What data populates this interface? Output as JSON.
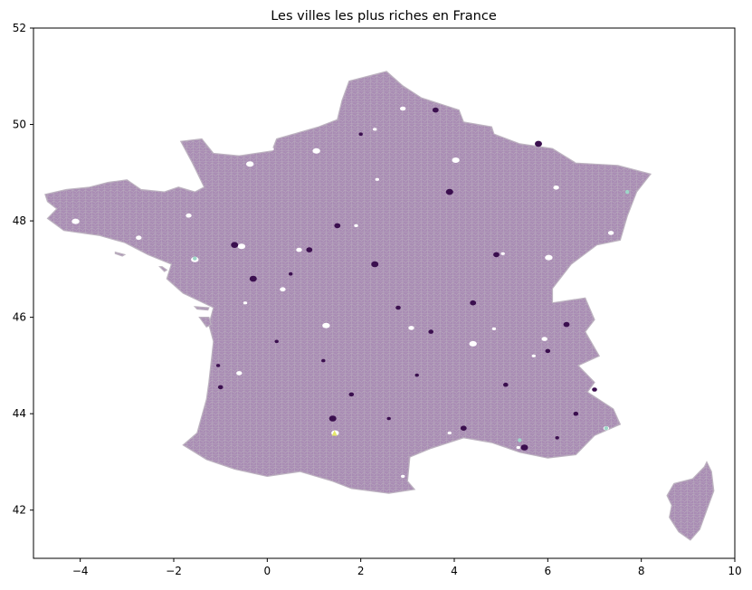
{
  "title": "Les villes les plus riches en France",
  "map": {
    "type": "choropleth",
    "x_range": [
      -5,
      10
    ],
    "y_range": [
      41,
      52
    ],
    "x_ticks": [
      {
        "value": -4,
        "label": "−4"
      },
      {
        "value": -2,
        "label": "−2"
      },
      {
        "value": 0,
        "label": "0"
      },
      {
        "value": 2,
        "label": "2"
      },
      {
        "value": 4,
        "label": "4"
      },
      {
        "value": 6,
        "label": "6"
      },
      {
        "value": 8,
        "label": "8"
      },
      {
        "value": 10,
        "label": "10"
      }
    ],
    "y_ticks": [
      {
        "value": 42,
        "label": "42"
      },
      {
        "value": 44,
        "label": "44"
      },
      {
        "value": 46,
        "label": "46"
      },
      {
        "value": 48,
        "label": "48"
      },
      {
        "value": 50,
        "label": "50"
      },
      {
        "value": 52,
        "label": "52"
      }
    ],
    "colors": {
      "base_fill": "#a98cb4",
      "region_border": "#bdb3c0",
      "dark_commune": "#3b0f4f",
      "highlight_yellow": "#e6e86a",
      "highlight_teal": "#9fd6c8",
      "axis": "#000000",
      "background": "#ffffff"
    },
    "dark_points": [
      [
        -1.05,
        45.0
      ],
      [
        -1.0,
        44.55
      ],
      [
        1.5,
        47.9
      ],
      [
        5.5,
        43.3
      ],
      [
        6.2,
        43.5
      ],
      [
        3.5,
        45.7
      ],
      [
        4.4,
        46.3
      ],
      [
        2.3,
        47.1
      ],
      [
        0.5,
        46.9
      ],
      [
        6.0,
        45.3
      ],
      [
        6.4,
        45.85
      ],
      [
        -0.3,
        46.8
      ],
      [
        1.2,
        45.1
      ],
      [
        2.8,
        46.2
      ],
      [
        4.9,
        47.3
      ],
      [
        5.8,
        49.6
      ],
      [
        3.2,
        44.8
      ],
      [
        1.8,
        44.4
      ],
      [
        0.9,
        47.4
      ],
      [
        3.9,
        48.6
      ],
      [
        2.0,
        49.8
      ],
      [
        6.6,
        44.0
      ],
      [
        4.2,
        43.7
      ],
      [
        -0.7,
        47.5
      ],
      [
        2.6,
        43.9
      ],
      [
        5.1,
        44.6
      ],
      [
        3.6,
        50.3
      ],
      [
        1.4,
        43.9
      ],
      [
        0.2,
        45.5
      ],
      [
        7.0,
        44.5
      ]
    ],
    "yellow_points": [
      [
        1.44,
        43.6
      ]
    ],
    "teal_points": [
      [
        -1.55,
        47.22
      ],
      [
        7.7,
        48.6
      ],
      [
        5.4,
        43.45
      ],
      [
        7.25,
        43.7
      ]
    ],
    "regions": {
      "mainland": [
        [
          -4.7,
          48.4
        ],
        [
          -4.75,
          48.55
        ],
        [
          -4.3,
          48.65
        ],
        [
          -3.8,
          48.7
        ],
        [
          -3.4,
          48.8
        ],
        [
          -3.0,
          48.85
        ],
        [
          -2.7,
          48.65
        ],
        [
          -2.2,
          48.6
        ],
        [
          -1.9,
          48.7
        ],
        [
          -1.55,
          48.6
        ],
        [
          -1.35,
          48.7
        ],
        [
          -1.6,
          49.2
        ],
        [
          -1.85,
          49.65
        ],
        [
          -1.4,
          49.7
        ],
        [
          -1.15,
          49.4
        ],
        [
          -0.6,
          49.35
        ],
        [
          0.1,
          49.45
        ],
        [
          0.2,
          49.7
        ],
        [
          1.1,
          49.95
        ],
        [
          1.5,
          50.1
        ],
        [
          1.6,
          50.5
        ],
        [
          1.75,
          50.9
        ],
        [
          2.55,
          51.1
        ],
        [
          2.9,
          50.8
        ],
        [
          3.3,
          50.55
        ],
        [
          4.1,
          50.3
        ],
        [
          4.2,
          50.05
        ],
        [
          4.8,
          49.95
        ],
        [
          4.85,
          49.8
        ],
        [
          5.4,
          49.6
        ],
        [
          6.1,
          49.5
        ],
        [
          6.6,
          49.2
        ],
        [
          7.5,
          49.15
        ],
        [
          8.2,
          48.97
        ],
        [
          7.9,
          48.6
        ],
        [
          7.7,
          48.1
        ],
        [
          7.55,
          47.6
        ],
        [
          7.05,
          47.5
        ],
        [
          6.5,
          47.1
        ],
        [
          6.1,
          46.6
        ],
        [
          6.1,
          46.3
        ],
        [
          6.8,
          46.4
        ],
        [
          7.0,
          45.95
        ],
        [
          6.8,
          45.7
        ],
        [
          7.1,
          45.2
        ],
        [
          6.65,
          45.0
        ],
        [
          7.0,
          44.65
        ],
        [
          6.85,
          44.45
        ],
        [
          7.4,
          44.1
        ],
        [
          7.55,
          43.78
        ],
        [
          7.0,
          43.55
        ],
        [
          6.6,
          43.15
        ],
        [
          6.0,
          43.08
        ],
        [
          5.4,
          43.2
        ],
        [
          4.8,
          43.4
        ],
        [
          4.2,
          43.5
        ],
        [
          3.5,
          43.28
        ],
        [
          3.05,
          43.1
        ],
        [
          3.0,
          42.6
        ],
        [
          3.15,
          42.43
        ],
        [
          2.6,
          42.35
        ],
        [
          1.8,
          42.45
        ],
        [
          1.4,
          42.6
        ],
        [
          0.7,
          42.8
        ],
        [
          0.0,
          42.7
        ],
        [
          -0.7,
          42.85
        ],
        [
          -1.3,
          43.05
        ],
        [
          -1.8,
          43.35
        ],
        [
          -1.5,
          43.6
        ],
        [
          -1.3,
          44.3
        ],
        [
          -1.25,
          44.65
        ],
        [
          -1.15,
          45.5
        ],
        [
          -1.25,
          45.85
        ],
        [
          -1.15,
          46.2
        ],
        [
          -1.8,
          46.5
        ],
        [
          -2.15,
          46.8
        ],
        [
          -2.05,
          47.1
        ],
        [
          -2.55,
          47.3
        ],
        [
          -3.05,
          47.55
        ],
        [
          -3.6,
          47.7
        ],
        [
          -4.35,
          47.8
        ],
        [
          -4.7,
          48.05
        ],
        [
          -4.5,
          48.25
        ],
        [
          -4.7,
          48.4
        ]
      ],
      "corsica": [
        [
          9.4,
          43.0
        ],
        [
          9.5,
          42.8
        ],
        [
          9.55,
          42.4
        ],
        [
          9.4,
          42.0
        ],
        [
          9.25,
          41.6
        ],
        [
          9.05,
          41.38
        ],
        [
          8.8,
          41.55
        ],
        [
          8.6,
          41.85
        ],
        [
          8.65,
          42.1
        ],
        [
          8.55,
          42.3
        ],
        [
          8.7,
          42.55
        ],
        [
          9.1,
          42.65
        ],
        [
          9.35,
          42.9
        ],
        [
          9.4,
          43.0
        ]
      ],
      "oleron": [
        [
          -1.45,
          46.0
        ],
        [
          -1.25,
          46.0
        ],
        [
          -1.2,
          45.85
        ],
        [
          -1.3,
          45.8
        ],
        [
          -1.45,
          46.0
        ]
      ],
      "re": [
        [
          -1.55,
          46.22
        ],
        [
          -1.25,
          46.2
        ],
        [
          -1.27,
          46.15
        ],
        [
          -1.5,
          46.17
        ],
        [
          -1.55,
          46.22
        ]
      ],
      "belle_ile": [
        [
          -3.25,
          47.35
        ],
        [
          -3.05,
          47.3
        ],
        [
          -3.1,
          47.27
        ],
        [
          -3.25,
          47.32
        ],
        [
          -3.25,
          47.35
        ]
      ],
      "noirmoutier": [
        [
          -2.3,
          47.05
        ],
        [
          -2.2,
          46.95
        ],
        [
          -2.15,
          46.98
        ],
        [
          -2.25,
          47.05
        ],
        [
          -2.3,
          47.05
        ]
      ]
    },
    "holes": [
      [
        2.35,
        48.86
      ],
      [
        2.9,
        50.33
      ],
      [
        1.05,
        49.45
      ],
      [
        4.85,
        45.76
      ],
      [
        -0.6,
        44.84
      ],
      [
        1.45,
        43.6
      ],
      [
        5.37,
        43.3
      ],
      [
        7.25,
        43.7
      ],
      [
        -1.55,
        47.2
      ],
      [
        3.9,
        43.6
      ],
      [
        0.68,
        47.4
      ],
      [
        -0.55,
        47.47
      ],
      [
        5.04,
        47.32
      ],
      [
        6.18,
        48.69
      ],
      [
        4.03,
        49.26
      ],
      [
        0.1,
        49.49
      ],
      [
        -1.68,
        48.11
      ],
      [
        -0.37,
        49.18
      ],
      [
        2.9,
        42.7
      ],
      [
        5.93,
        45.55
      ],
      [
        4.4,
        45.45
      ],
      [
        1.9,
        47.9
      ],
      [
        0.33,
        46.58
      ],
      [
        1.26,
        45.83
      ],
      [
        -0.47,
        46.3
      ],
      [
        3.08,
        45.78
      ],
      [
        6.02,
        47.24
      ],
      [
        5.7,
        45.2
      ],
      [
        7.35,
        47.75
      ],
      [
        -4.1,
        47.99
      ],
      [
        2.3,
        49.9
      ],
      [
        -2.75,
        47.65
      ]
    ]
  }
}
